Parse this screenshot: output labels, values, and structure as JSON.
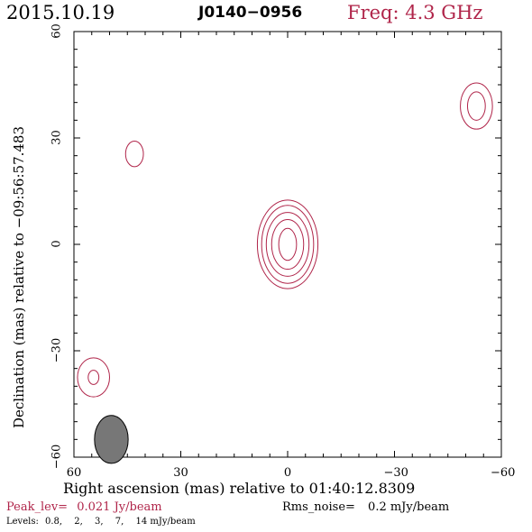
{
  "header": {
    "date": "2015.10.19",
    "source": "J0140−0956",
    "freq": "Freq: 4.3 GHz"
  },
  "colors": {
    "contour": "#b0254a",
    "freq": "#b0254a",
    "peak": "#b0254a",
    "beam_fill": "#777777",
    "text": "#000000"
  },
  "chart_data": {
    "type": "contour",
    "xlabel": "Right ascension (mas) relative to 01:40:12.8309",
    "ylabel": "Declination (mas) relative to −09:56:57.483",
    "xlim": [
      60,
      -60
    ],
    "ylim": [
      -60,
      60
    ],
    "x_ticks": [
      60,
      30,
      0,
      -30,
      -60
    ],
    "y_ticks": [
      60,
      30,
      0,
      -30,
      -60
    ],
    "x_tick_labels": [
      "60",
      "30",
      "0",
      "−30",
      "−60"
    ],
    "y_tick_labels": [
      "60",
      "30",
      "0",
      "−30",
      "−60"
    ],
    "components": [
      {
        "x": 0,
        "y": 0,
        "contours": [
          [
            2.5,
            4.5
          ],
          [
            4.5,
            7.0
          ],
          [
            6.0,
            9.0
          ],
          [
            7.3,
            11.0
          ],
          [
            8.5,
            12.5
          ]
        ]
      },
      {
        "x": -53,
        "y": 39,
        "contours": [
          [
            2.5,
            4.0
          ],
          [
            4.5,
            6.5
          ]
        ]
      },
      {
        "x": 43,
        "y": 25.5,
        "contours": [
          [
            2.5,
            3.6
          ]
        ]
      },
      {
        "x": 54.5,
        "y": -37.5,
        "contours": [
          [
            1.5,
            2.0
          ],
          [
            4.5,
            5.5
          ]
        ]
      }
    ],
    "beam": {
      "x": 49.5,
      "y": -55,
      "semi_axes": [
        3.5,
        5.0
      ]
    },
    "peak_label": "Peak_lev=",
    "peak_value": "0.021 Jy/beam",
    "rms_label": "Rms_noise=",
    "rms_value": "0.2 mJy/beam",
    "levels_label": "Levels:",
    "levels": [
      "0.8,",
      "2,",
      "3,",
      "7,",
      "14 mJy/beam"
    ]
  }
}
